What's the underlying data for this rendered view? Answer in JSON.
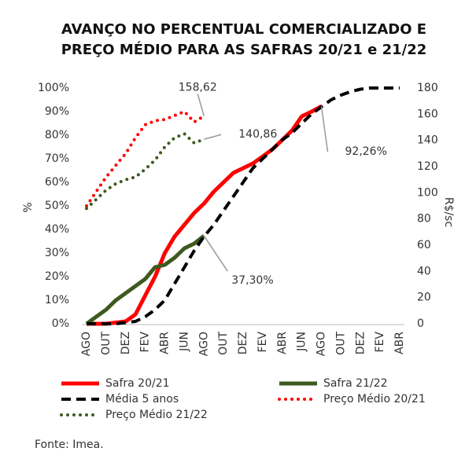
{
  "chart_data": {
    "type": "line",
    "title": [
      "AVANÇO NO PERCENTUAL COMERCIALIZADO E",
      "PREÇO MÉDIO PARA AS SAFRAS 20/21 e 21/22"
    ],
    "ylabel": "%",
    "y2label": "R$/sc",
    "source": "Fonte: Imea.",
    "categories": [
      "AGO",
      null,
      "OUT",
      null,
      "DEZ",
      null,
      "FEV",
      null,
      "ABR",
      null,
      "JUN",
      null,
      "AGO",
      null,
      "OUT",
      null,
      "DEZ",
      null,
      "FEV",
      null,
      "ABR",
      null,
      "JUN",
      null,
      "AGO",
      null,
      "OUT",
      null,
      "DEZ",
      null,
      "FEV",
      null,
      "ABR"
    ],
    "ylim": [
      0,
      100
    ],
    "yticks": [
      {
        "value": 0,
        "label": "0%"
      },
      {
        "value": 10,
        "label": "10%"
      },
      {
        "value": 20,
        "label": "20%"
      },
      {
        "value": 30,
        "label": "30%"
      },
      {
        "value": 40,
        "label": "40%"
      },
      {
        "value": 50,
        "label": "50%"
      },
      {
        "value": 60,
        "label": "60%"
      },
      {
        "value": 70,
        "label": "70%"
      },
      {
        "value": 80,
        "label": "80%"
      },
      {
        "value": 90,
        "label": "90%"
      },
      {
        "value": 100,
        "label": "100%"
      }
    ],
    "y2lim": [
      0,
      180
    ],
    "y2ticks": [
      0,
      20,
      40,
      60,
      80,
      100,
      120,
      140,
      160,
      180
    ],
    "series": [
      {
        "name": "Safra 20/21",
        "color": "#ff0000",
        "style": "solid",
        "values": [
          0,
          0,
          0,
          0.5,
          1,
          4,
          12,
          20,
          30,
          37,
          42,
          47,
          51,
          56,
          60,
          64,
          66,
          68,
          71,
          74,
          78,
          82,
          88,
          90,
          92.26,
          null,
          null,
          null,
          null,
          null,
          null,
          null,
          null
        ],
        "value_labels": [
          null,
          null,
          null,
          null,
          null,
          null,
          null,
          null,
          null,
          null,
          null,
          null,
          null,
          null,
          null,
          null,
          null,
          null,
          null,
          null,
          null,
          null,
          null,
          null,
          "92,26%",
          null,
          null,
          null,
          null,
          null,
          null,
          null,
          null
        ]
      },
      {
        "name": "Safra 21/22",
        "color": "#3d5a1e",
        "style": "solid",
        "values": [
          0,
          3,
          6,
          10,
          13,
          16,
          19,
          24,
          25,
          28,
          32,
          34,
          37.3,
          null,
          null,
          null,
          null,
          null,
          null,
          null,
          null,
          null,
          null,
          null,
          null,
          null,
          null,
          null,
          null,
          null,
          null,
          null,
          null
        ],
        "value_labels": [
          null,
          null,
          null,
          null,
          null,
          null,
          null,
          null,
          null,
          null,
          null,
          null,
          "37,30%",
          null,
          null,
          null,
          null,
          null,
          null,
          null,
          null,
          null,
          null,
          null,
          null,
          null,
          null,
          null,
          null,
          null,
          null,
          null,
          null
        ]
      },
      {
        "name": "Média 5 anos",
        "color": "#000000",
        "style": "dashed",
        "values": [
          0,
          0,
          0,
          0,
          0.5,
          1,
          3,
          6,
          10,
          17,
          24,
          31,
          37,
          42,
          48,
          54,
          60,
          66,
          70,
          74,
          78,
          81,
          85,
          89,
          92,
          95,
          97,
          98.5,
          99.5,
          100,
          100,
          100,
          100
        ]
      },
      {
        "name": "Preço Médio 20/21",
        "color": "#ff0000",
        "style": "dotted",
        "axis": "y2",
        "values": [
          90,
          101,
          112,
          121,
          130,
          142,
          152,
          155,
          156,
          159,
          162,
          154,
          158.62,
          null,
          null,
          null,
          null,
          null,
          null,
          null,
          null,
          null,
          null,
          null,
          null,
          null,
          null,
          null,
          null,
          null,
          null,
          null,
          null
        ],
        "value_labels": [
          null,
          null,
          null,
          null,
          null,
          null,
          null,
          null,
          null,
          null,
          null,
          null,
          "158,62",
          null,
          null,
          null,
          null,
          null,
          null,
          null,
          null,
          null,
          null,
          null,
          null,
          null,
          null,
          null,
          null,
          null,
          null,
          null,
          null
        ]
      },
      {
        "name": "Preço Médio 21/22",
        "color": "#3d5a1e",
        "style": "dotted",
        "axis": "y2",
        "values": [
          88,
          95,
          102,
          107,
          110,
          112,
          118,
          125,
          135,
          142,
          145,
          138,
          140.86,
          null,
          null,
          null,
          null,
          null,
          null,
          null,
          null,
          null,
          null,
          null,
          null,
          null,
          null,
          null,
          null,
          null,
          null,
          null,
          null
        ],
        "value_labels": [
          null,
          null,
          null,
          null,
          null,
          null,
          null,
          null,
          null,
          null,
          null,
          null,
          "140,86",
          null,
          null,
          null,
          null,
          null,
          null,
          null,
          null,
          null,
          null,
          null,
          null,
          null,
          null,
          null,
          null,
          null,
          null,
          null,
          null
        ]
      }
    ]
  }
}
